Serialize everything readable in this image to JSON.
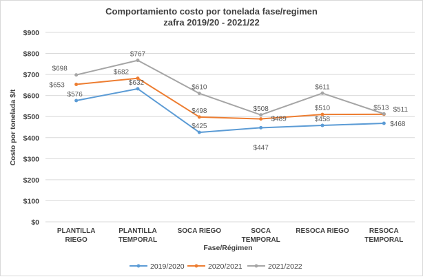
{
  "chart_data": {
    "type": "line",
    "title": [
      "Comportamiento costo por tonelada fase/regimen",
      "zafra 2019/20 - 2021/22"
    ],
    "xlabel": "Fase/Régimen",
    "ylabel": "Costo por tonelada $/t",
    "categories": [
      [
        "PLANTILLA",
        "RIEGO"
      ],
      [
        "PLANTILLA",
        "TEMPORAL"
      ],
      [
        "SOCA RIEGO"
      ],
      [
        "SOCA",
        "TEMPORAL"
      ],
      [
        "RESOCA RIEGO"
      ],
      [
        "RESOCA",
        "TEMPORAL"
      ]
    ],
    "ylim": [
      0,
      900
    ],
    "yticks": [
      0,
      100,
      200,
      300,
      400,
      500,
      600,
      700,
      800,
      900
    ],
    "ytick_labels": [
      "$0",
      "$100",
      "$200",
      "$300",
      "$400",
      "$500",
      "$600",
      "$700",
      "$800",
      "$900"
    ],
    "grid": true,
    "legend_position": "bottom",
    "series": [
      {
        "name": "2019/2020",
        "color": "#5b9bd5",
        "values": [
          576,
          632,
          425,
          447,
          458,
          468
        ],
        "labels": [
          "$576",
          "$632",
          "$425",
          "$447",
          "$458",
          "$468"
        ]
      },
      {
        "name": "2020/2021",
        "color": "#ed7d31",
        "values": [
          653,
          682,
          498,
          489,
          510,
          511
        ],
        "labels": [
          "$653",
          "$682",
          "$498",
          "$489",
          "$510",
          "$511"
        ]
      },
      {
        "name": "2021/2022",
        "color": "#a5a5a5",
        "values": [
          698,
          767,
          610,
          508,
          611,
          513
        ],
        "labels": [
          "$698",
          "$767",
          "$610",
          "$508",
          "$611",
          "$513"
        ]
      }
    ]
  }
}
